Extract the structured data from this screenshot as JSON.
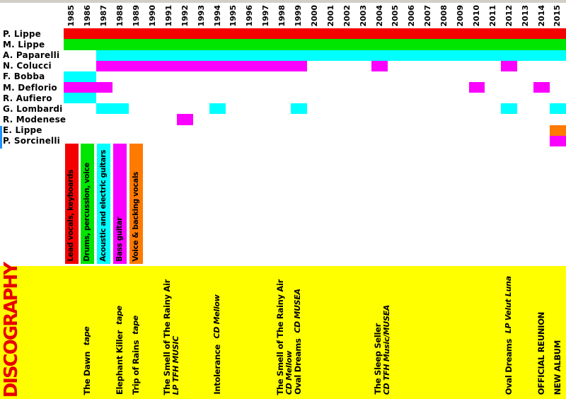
{
  "colors": {
    "red": "#F40000",
    "green": "#00E600",
    "cyan": "#00FFFF",
    "magenta": "#FA00FF",
    "orange": "#FF7A00",
    "yellow": "#FFFF00",
    "heading_red": "#E80000",
    "top_strip": "#D2CEC6",
    "artifact_blue": "#1E90FF",
    "text_black": "#000000"
  },
  "chart_data": {
    "type": "bar",
    "subtype": "band-membership-gantt-timeline",
    "x_axis_position": "top",
    "grid": false,
    "year_labels": [
      "1985",
      "1986",
      "1987",
      "1988",
      "1989",
      "1990",
      "1991",
      "1992",
      "1993",
      "1994",
      "1995",
      "1996",
      "1997",
      "1998",
      "1999",
      "2000",
      "2001",
      "2002",
      "2003",
      "2004",
      "2005",
      "2006",
      "2007",
      "2008",
      "2009",
      "2010",
      "2011",
      "2012",
      "2013",
      "2014",
      "2015"
    ],
    "year_range": [
      1985,
      2015
    ],
    "members": [
      {
        "name": "P. Lippe",
        "color": "red",
        "segments": [
          [
            1985,
            2015
          ]
        ]
      },
      {
        "name": "M. Lippe",
        "color": "green",
        "segments": [
          [
            1985,
            2015
          ]
        ]
      },
      {
        "name": "A. Paparelli",
        "color": "cyan",
        "segments": [
          [
            1987,
            2015
          ]
        ]
      },
      {
        "name": "N. Colucci",
        "color": "magenta",
        "segments": [
          [
            1987,
            1999
          ],
          [
            2004,
            2004
          ],
          [
            2012,
            2012
          ]
        ]
      },
      {
        "name": "F. Bobba",
        "color": "cyan",
        "segments": [
          [
            1985,
            1986
          ]
        ]
      },
      {
        "name": "M. Deflorio",
        "color": "magenta",
        "segments": [
          [
            1985,
            1987
          ],
          [
            2010,
            2010
          ],
          [
            2014,
            2014
          ]
        ]
      },
      {
        "name": "R. Aufiero",
        "color": "cyan",
        "segments": [
          [
            1985,
            1986
          ]
        ]
      },
      {
        "name": "G. Lombardi",
        "color": "cyan",
        "segments": [
          [
            1987,
            1988
          ],
          [
            1994,
            1994
          ],
          [
            1999,
            1999
          ],
          [
            2012,
            2012
          ],
          [
            2015,
            2015
          ]
        ]
      },
      {
        "name": "R. Modenese",
        "color": "magenta",
        "segments": [
          [
            1992,
            1992
          ]
        ]
      },
      {
        "name": "E. Lippe",
        "color": "orange",
        "segments": [
          [
            2015,
            2015
          ]
        ]
      },
      {
        "name": "P. Sorcinelli",
        "color": "magenta",
        "segments": [
          [
            2015,
            2015
          ]
        ]
      }
    ],
    "legend": [
      {
        "label": "Lead vocals, keyboards",
        "color": "red"
      },
      {
        "label": "Drums, percussion, voice",
        "color": "green"
      },
      {
        "label": "Acoustic and electric guitars",
        "color": "cyan"
      },
      {
        "label": "Bass guitar",
        "color": "magenta"
      },
      {
        "label": "Voice & backing vocals",
        "color": "orange"
      }
    ],
    "discography_heading": {
      "text": "DISCOGRAPHY"
    },
    "discography": [
      {
        "year": 1986,
        "lines": [
          [
            {
              "text": "The Dawn",
              "style": "bold"
            },
            {
              "text": "tape",
              "style": "italic"
            }
          ]
        ]
      },
      {
        "year": 1988,
        "lines": [
          [
            {
              "text": "Elephant Killer",
              "style": "bold"
            },
            {
              "text": "tape",
              "style": "italic"
            }
          ]
        ]
      },
      {
        "year": 1989,
        "lines": [
          [
            {
              "text": "Trip of Rains",
              "style": "bold"
            },
            {
              "text": "tape",
              "style": "italic"
            }
          ]
        ]
      },
      {
        "year": 1991,
        "lines": [
          [
            {
              "text": "The Smell of The Rainy Air",
              "style": "bold"
            }
          ],
          [
            {
              "text": "LP TFH MUSIC",
              "style": "italic"
            }
          ]
        ]
      },
      {
        "year": 1994,
        "lines": [
          [
            {
              "text": "Intolerance",
              "style": "bold"
            },
            {
              "text": "CD Mellow",
              "style": "italic"
            }
          ]
        ]
      },
      {
        "year": 1998,
        "lines": [
          [
            {
              "text": "The Smell of The Rainy Air",
              "style": "bold"
            }
          ],
          [
            {
              "text": "CD Mellow",
              "style": "italic"
            }
          ]
        ]
      },
      {
        "year": 1999,
        "lines": [
          [
            {
              "text": "Oval Dreams",
              "style": "bold"
            },
            {
              "text": "CD MUSEA",
              "style": "italic"
            }
          ]
        ]
      },
      {
        "year": 2004,
        "lines": [
          [
            {
              "text": "The Sleep Seller",
              "style": "bold"
            }
          ],
          [
            {
              "text": "CD TFH Music/MUSEA",
              "style": "italic"
            }
          ]
        ]
      },
      {
        "year": 2012,
        "lines": [
          [
            {
              "text": "Oval Dreams",
              "style": "bold"
            },
            {
              "text": "LP Velut Luna",
              "style": "italic"
            }
          ]
        ]
      },
      {
        "year": 2014,
        "lines": [
          [
            {
              "text": "OFFICIAL REUNION",
              "style": "bold"
            }
          ]
        ]
      },
      {
        "year": 2015,
        "lines": [
          [
            {
              "text": "NEW ALBUM",
              "style": "bold"
            }
          ]
        ]
      }
    ]
  }
}
